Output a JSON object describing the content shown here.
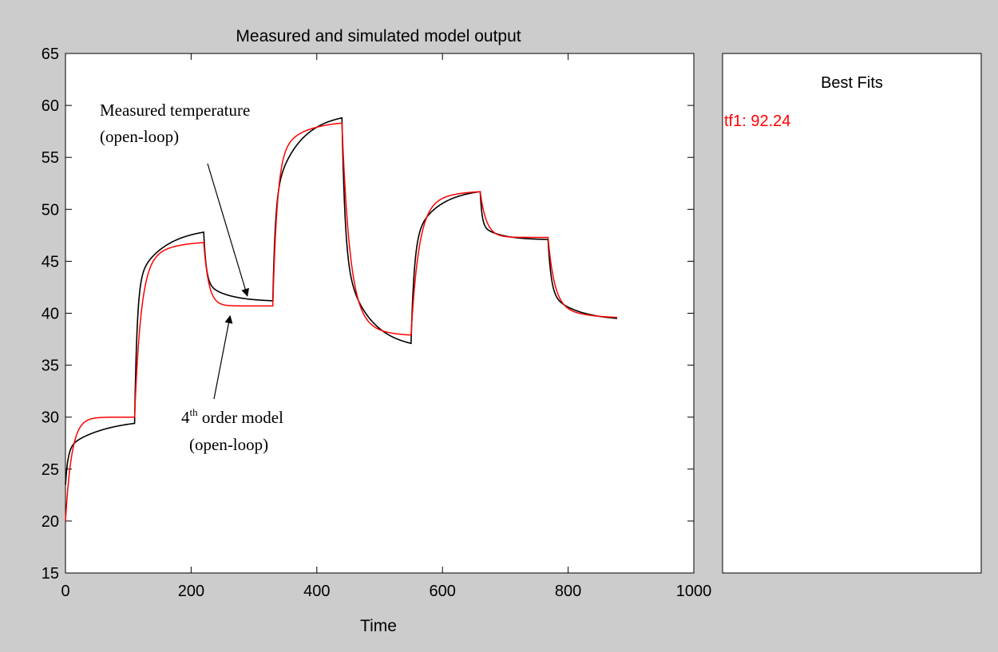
{
  "chart_data": {
    "type": "line",
    "title": "Measured and simulated model output",
    "xlabel": "Time",
    "ylabel": "",
    "xlim": [
      0,
      1000
    ],
    "ylim": [
      15,
      65
    ],
    "xticks": [
      0,
      200,
      400,
      600,
      800,
      1000
    ],
    "yticks": [
      15,
      20,
      25,
      30,
      35,
      40,
      45,
      50,
      55,
      60,
      65
    ],
    "grid": false,
    "series": [
      {
        "key": "measured",
        "color": "#000000",
        "segments": [
          {
            "t0": 0,
            "t1": 110,
            "start": 23.5,
            "end": 29.4,
            "shape": "fast-slow",
            "frac": 0.55,
            "tau_fast": 4,
            "tau_slow": 60
          },
          {
            "t0": 110,
            "t1": 220,
            "start": 29.4,
            "end": 47.8,
            "shape": "fast-slow",
            "frac": 0.72,
            "tau_fast": 4,
            "tau_slow": 45
          },
          {
            "t0": 220,
            "t1": 330,
            "start": 47.8,
            "end": 41.2,
            "shape": "fast-slow",
            "frac": 0.72,
            "tau_fast": 4,
            "tau_slow": 35
          },
          {
            "t0": 330,
            "t1": 440,
            "start": 41.2,
            "end": 58.8,
            "shape": "fast-slow",
            "frac": 0.55,
            "tau_fast": 4,
            "tau_slow": 40
          },
          {
            "t0": 440,
            "t1": 550,
            "start": 58.8,
            "end": 37.1,
            "shape": "fast-slow",
            "frac": 0.6,
            "tau_fast": 5,
            "tau_slow": 40
          },
          {
            "t0": 550,
            "t1": 660,
            "start": 37.1,
            "end": 51.7,
            "shape": "fast-slow",
            "frac": 0.66,
            "tau_fast": 5,
            "tau_slow": 40
          },
          {
            "t0": 660,
            "t1": 768,
            "start": 51.7,
            "end": 47.1,
            "shape": "fast-slow",
            "frac": 0.7,
            "tau_fast": 3,
            "tau_slow": 30
          },
          {
            "t0": 768,
            "t1": 878,
            "start": 47.1,
            "end": 39.5,
            "shape": "fast-slow",
            "frac": 0.66,
            "tau_fast": 5,
            "tau_slow": 45
          }
        ]
      },
      {
        "key": "model",
        "color": "#ff0000",
        "segments": [
          {
            "t0": 0,
            "t1": 110,
            "start": 20.0,
            "end": 30.0,
            "shape": "single",
            "tau": 10
          },
          {
            "t0": 110,
            "t1": 220,
            "start": 30.0,
            "end": 46.8,
            "shape": "fast-slow",
            "frac": 0.85,
            "tau_fast": 10,
            "tau_slow": 40
          },
          {
            "t0": 220,
            "t1": 330,
            "start": 46.8,
            "end": 40.7,
            "shape": "single",
            "tau": 8
          },
          {
            "t0": 330,
            "t1": 440,
            "start": 40.7,
            "end": 58.3,
            "shape": "fast-slow",
            "frac": 0.8,
            "tau_fast": 7,
            "tau_slow": 40
          },
          {
            "t0": 440,
            "t1": 550,
            "start": 58.3,
            "end": 37.9,
            "shape": "fast-slow",
            "frac": 0.82,
            "tau_fast": 12,
            "tau_slow": 30
          },
          {
            "t0": 550,
            "t1": 660,
            "start": 37.9,
            "end": 51.7,
            "shape": "fast-slow",
            "frac": 0.85,
            "tau_fast": 12,
            "tau_slow": 40
          },
          {
            "t0": 660,
            "t1": 768,
            "start": 51.7,
            "end": 47.3,
            "shape": "single",
            "tau": 10
          },
          {
            "t0": 768,
            "t1": 878,
            "start": 47.3,
            "end": 39.6,
            "shape": "fast-slow",
            "frac": 0.8,
            "tau_fast": 10,
            "tau_slow": 40
          }
        ]
      }
    ],
    "annotations": [
      {
        "key": "measured",
        "lines": [
          "Measured temperature",
          "(open-loop)"
        ],
        "arrow_to": {
          "x": 292,
          "y": 41.2
        }
      },
      {
        "key": "model",
        "lines": [
          "4",
          "th",
          " order model",
          "(open-loop)"
        ],
        "arrow_to": {
          "x": 262,
          "y": 40.2
        }
      }
    ]
  },
  "best_fits": {
    "title": "Best Fits",
    "entries": [
      {
        "label": "tf1: 92.24",
        "color": "#ff0000"
      }
    ]
  }
}
